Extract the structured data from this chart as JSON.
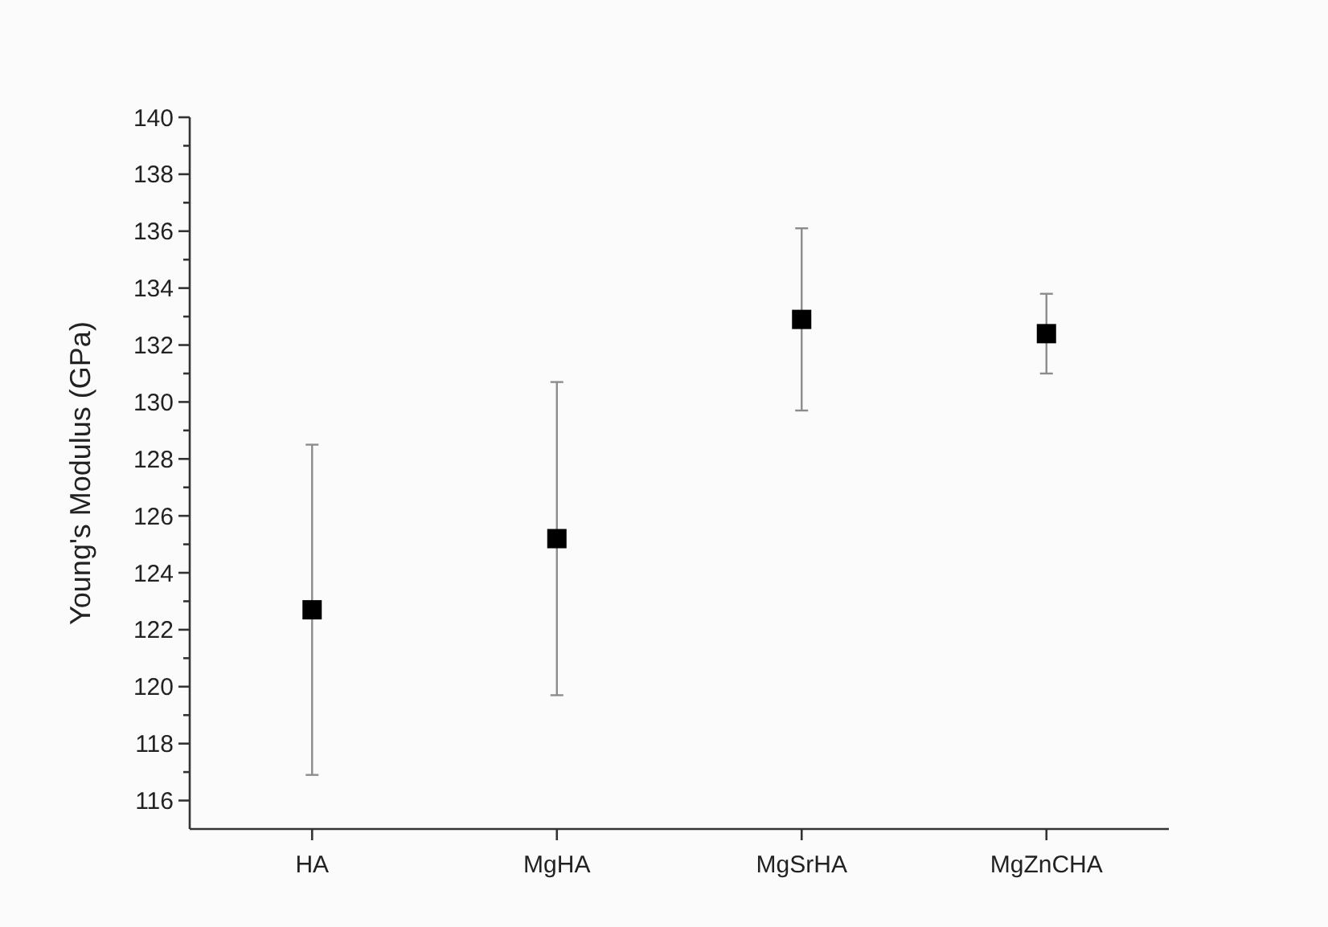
{
  "chart_data": {
    "type": "scatter",
    "ylabel": "Young's Modulus (GPa)",
    "categories": [
      "HA",
      "MgHA",
      "MgSrHA",
      "MgZnCHA"
    ],
    "series": [
      {
        "color": "#000000",
        "values": [
          122.7,
          125.2,
          132.9,
          132.4
        ],
        "errors": [
          5.8,
          5.5,
          3.2,
          1.4
        ]
      }
    ],
    "marker": "square",
    "ylim": [
      115,
      140
    ],
    "yticks": [
      116,
      {
        "value": 117,
        "label": null
      },
      118,
      {
        "value": 119,
        "label": null
      },
      120,
      {
        "value": 121,
        "label": null
      },
      122,
      {
        "value": 123,
        "label": null
      },
      124,
      {
        "value": 125,
        "label": null
      },
      126,
      {
        "value": 127,
        "label": null
      },
      128,
      {
        "value": 129,
        "label": null
      },
      130,
      {
        "value": 131,
        "label": null
      },
      132,
      {
        "value": 133,
        "label": null
      },
      134,
      {
        "value": 135,
        "label": null
      },
      136,
      {
        "value": 137,
        "label": null
      },
      138,
      {
        "value": 139,
        "label": null
      },
      140
    ],
    "grid": false
  }
}
